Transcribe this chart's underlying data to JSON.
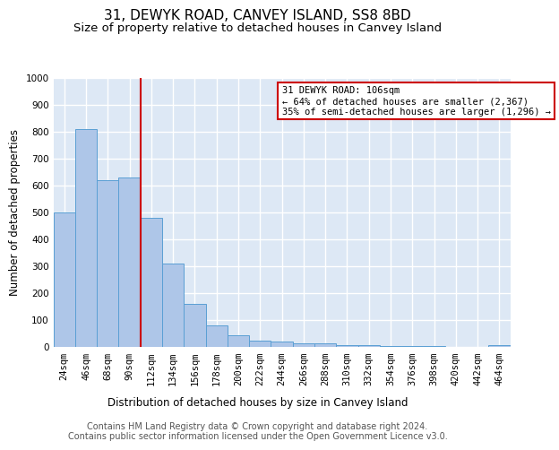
{
  "title": "31, DEWYK ROAD, CANVEY ISLAND, SS8 8BD",
  "subtitle": "Size of property relative to detached houses in Canvey Island",
  "xlabel": "Distribution of detached houses by size in Canvey Island",
  "ylabel": "Number of detached properties",
  "footer_line1": "Contains HM Land Registry data © Crown copyright and database right 2024.",
  "footer_line2": "Contains public sector information licensed under the Open Government Licence v3.0.",
  "categories": [
    "24sqm",
    "46sqm",
    "68sqm",
    "90sqm",
    "112sqm",
    "134sqm",
    "156sqm",
    "178sqm",
    "200sqm",
    "222sqm",
    "244sqm",
    "266sqm",
    "288sqm",
    "310sqm",
    "332sqm",
    "354sqm",
    "376sqm",
    "398sqm",
    "420sqm",
    "442sqm",
    "464sqm"
  ],
  "values": [
    500,
    810,
    620,
    630,
    480,
    310,
    160,
    80,
    45,
    25,
    20,
    15,
    12,
    8,
    6,
    4,
    3,
    2,
    1,
    1,
    8
  ],
  "bar_color": "#aec6e8",
  "bar_edge_color": "#5a9fd4",
  "annotation_line1": "31 DEWYK ROAD: 106sqm",
  "annotation_line2": "← 64% of detached houses are smaller (2,367)",
  "annotation_line3": "35% of semi-detached houses are larger (1,296) →",
  "vline_x": 3.5,
  "vline_color": "#cc0000",
  "annotation_box_color": "#ffffff",
  "annotation_box_edge": "#cc0000",
  "ylim": [
    0,
    1000
  ],
  "yticks": [
    0,
    100,
    200,
    300,
    400,
    500,
    600,
    700,
    800,
    900,
    1000
  ],
  "bg_color": "#dde8f5",
  "plot_bg_color": "#dde8f5",
  "fig_bg_color": "#ffffff",
  "grid_color": "#ffffff",
  "title_fontsize": 11,
  "subtitle_fontsize": 9.5,
  "axis_label_fontsize": 8.5,
  "tick_fontsize": 7.5,
  "footer_fontsize": 7
}
